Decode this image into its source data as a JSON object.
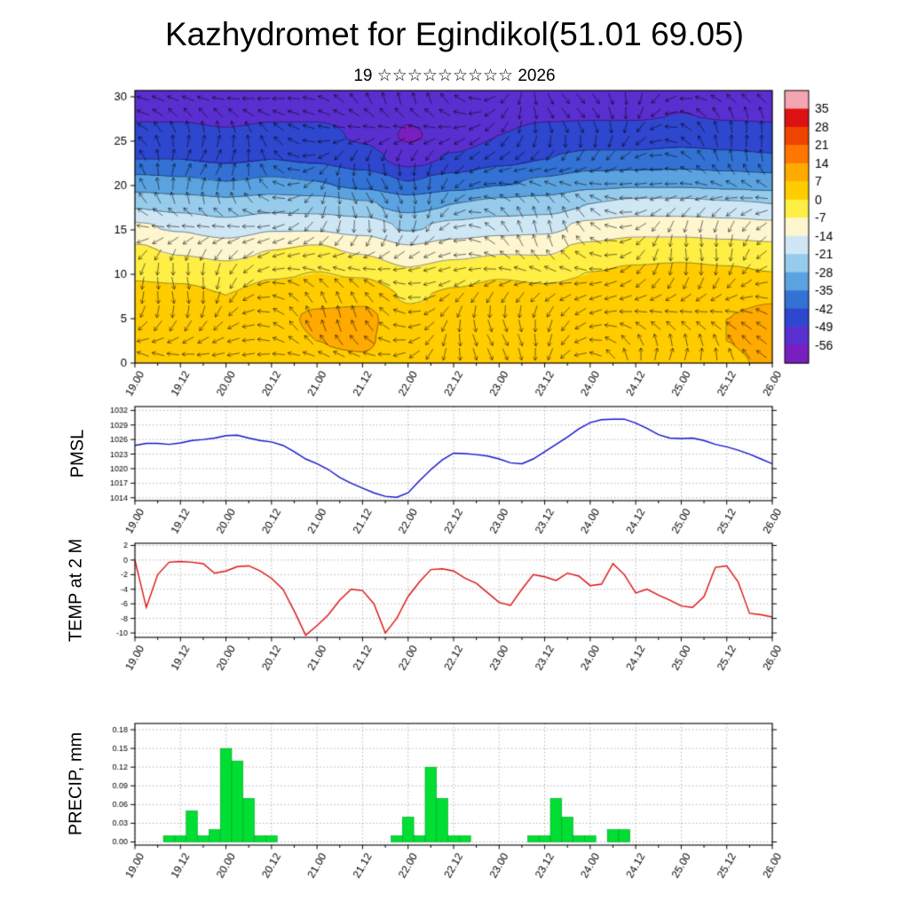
{
  "header": {
    "title": "Kazhydromet for Egindikol(51.01 69.05)",
    "subtitle": "19 ☆☆☆☆☆☆☆☆☆ 2026"
  },
  "axes": {
    "x_labels": [
      "19.00",
      "19.12",
      "20.00",
      "20.12",
      "21.00",
      "21.12",
      "22.00",
      "22.12",
      "23.00",
      "23.12",
      "24.00",
      "24.12",
      "25.00",
      "25.12",
      "26.00"
    ]
  },
  "chart_data": [
    {
      "type": "heatmap",
      "name": "temperature-wind-cross-section",
      "ylabel": "",
      "y_ticks": [
        "0",
        "5",
        "10",
        "15",
        "20",
        "25",
        "30"
      ],
      "ylim": [
        0,
        30.7
      ],
      "overlay": "wind-barbs-and-contours",
      "colorbar": {
        "labels": [
          "35",
          "28",
          "21",
          "14",
          "7",
          "0",
          "-7",
          "-14",
          "-21",
          "-28",
          "-35",
          "-42",
          "-49",
          "-56"
        ],
        "colors": [
          "#f4a5b2",
          "#dd1111",
          "#ee4400",
          "#ff7700",
          "#ffaa00",
          "#ffcc00",
          "#ffee44",
          "#fdf6cf",
          "#cfe7f5",
          "#97cbec",
          "#5ba3e0",
          "#3372d4",
          "#2f46cf",
          "#5a2fd0",
          "#7a1fbf"
        ]
      },
      "grid": {
        "heights": [
          30,
          27.5,
          25,
          22.5,
          20,
          17.5,
          15,
          12.5,
          10,
          7.5,
          5,
          2.5,
          0
        ],
        "values": [
          [
            -52,
            -52,
            -53,
            -52,
            -51,
            -52,
            -54,
            -53,
            -52,
            -51,
            -52,
            -52,
            -51,
            -52,
            -52
          ],
          [
            -50,
            -50,
            -51,
            -50,
            -50,
            -51,
            -55,
            -53,
            -51,
            -50,
            -50,
            -50,
            -49,
            -50,
            -50
          ],
          [
            -47,
            -47,
            -48,
            -47,
            -47,
            -50,
            -57,
            -53,
            -49,
            -47,
            -46,
            -46,
            -45,
            -46,
            -47
          ],
          [
            -42,
            -42,
            -43,
            -42,
            -43,
            -46,
            -52,
            -48,
            -44,
            -42,
            -40,
            -40,
            -39,
            -40,
            -41
          ],
          [
            -33,
            -34,
            -35,
            -34,
            -35,
            -38,
            -42,
            -39,
            -36,
            -34,
            -31,
            -30,
            -30,
            -31,
            -32
          ],
          [
            -22,
            -24,
            -26,
            -24,
            -25,
            -27,
            -31,
            -28,
            -26,
            -25,
            -21,
            -19,
            -19,
            -20,
            -21
          ],
          [
            -13,
            -15,
            -18,
            -15,
            -15,
            -17,
            -22,
            -19,
            -17,
            -16,
            -12,
            -10,
            -10,
            -11,
            -12
          ],
          [
            -6,
            -8,
            -10,
            -7,
            -6,
            -8,
            -13,
            -10,
            -8,
            -8,
            -5,
            -3,
            -3,
            -4,
            -5
          ],
          [
            -1,
            -2,
            -4,
            -1,
            0,
            -1,
            -6,
            -3,
            -1,
            -2,
            0,
            1,
            2,
            1,
            0
          ],
          [
            2,
            2,
            0,
            3,
            5,
            5,
            -1,
            1,
            3,
            2,
            3,
            4,
            5,
            5,
            6
          ],
          [
            4,
            3,
            2,
            5,
            8,
            9,
            2,
            3,
            5,
            4,
            5,
            5,
            6,
            7,
            9
          ],
          [
            4,
            4,
            3,
            5,
            7,
            8,
            3,
            4,
            5,
            4,
            5,
            5,
            6,
            7,
            9
          ],
          [
            3,
            3,
            3,
            4,
            6,
            6,
            3,
            3,
            4,
            3,
            4,
            4,
            5,
            6,
            8
          ]
        ]
      }
    },
    {
      "type": "line",
      "ylabel": "PMSL",
      "color": "#1414cc",
      "x_start_hour": 0,
      "x_step_hours": 3,
      "y_ticks": [
        "1014",
        "1017",
        "1020",
        "1023",
        "1026",
        "1029",
        "1032"
      ],
      "ylim": [
        1013.4,
        1032.8
      ],
      "values": [
        1024.8,
        1025.2,
        1025.2,
        1025.0,
        1025.3,
        1025.8,
        1026.0,
        1026.3,
        1026.8,
        1026.9,
        1026.3,
        1025.8,
        1025.5,
        1024.8,
        1023.5,
        1022.0,
        1021.0,
        1019.8,
        1018.2,
        1017.0,
        1016.0,
        1015.0,
        1014.3,
        1014.1,
        1015.0,
        1017.5,
        1019.8,
        1021.8,
        1023.2,
        1023.1,
        1022.9,
        1022.6,
        1022.0,
        1021.2,
        1021.0,
        1022.0,
        1023.5,
        1025.0,
        1026.5,
        1028.2,
        1029.5,
        1030.1,
        1030.2,
        1030.2,
        1029.4,
        1028.3,
        1027.0,
        1026.3,
        1026.2,
        1026.3,
        1025.8,
        1025.0,
        1024.5,
        1023.8,
        1023.0,
        1022.0,
        1021.0
      ]
    },
    {
      "type": "line",
      "ylabel": "TEMP at 2 M",
      "color": "#dd1111",
      "x_start_hour": 0,
      "x_step_hours": 3,
      "y_ticks": [
        "2",
        "0",
        "-2",
        "-4",
        "-6",
        "-8",
        "-10"
      ],
      "ylim": [
        -10.6,
        2.3
      ],
      "values": [
        0.0,
        -6.5,
        -2.0,
        -0.3,
        -0.2,
        -0.3,
        -0.5,
        -1.8,
        -1.5,
        -0.9,
        -0.8,
        -1.5,
        -2.5,
        -4.0,
        -7.0,
        -10.3,
        -9.0,
        -7.5,
        -5.5,
        -4.0,
        -4.2,
        -6.0,
        -10.0,
        -8.0,
        -5.0,
        -3.0,
        -1.3,
        -1.2,
        -1.5,
        -2.5,
        -3.2,
        -4.5,
        -5.8,
        -6.2,
        -4.0,
        -2.0,
        -2.3,
        -2.8,
        -1.8,
        -2.2,
        -3.5,
        -3.3,
        -0.5,
        -2.0,
        -4.5,
        -4.0,
        -4.8,
        -5.5,
        -6.3,
        -6.5,
        -5.0,
        -1.0,
        -0.8,
        -3.0,
        -7.3,
        -7.5,
        -7.8
      ]
    },
    {
      "type": "bar",
      "ylabel": "PRECIP, mm",
      "color": "#00dd33",
      "bar_edge_color": "#009922",
      "x_start_hour": 0,
      "x_step_hours": 3,
      "y_ticks": [
        "0.00",
        "0.03",
        "0.06",
        "0.09",
        "0.12",
        "0.15",
        "0.18"
      ],
      "ylim": [
        -0.005,
        0.19
      ],
      "values": [
        0,
        0,
        0,
        0.01,
        0.01,
        0.05,
        0.01,
        0.02,
        0.15,
        0.13,
        0.07,
        0.01,
        0.01,
        0,
        0,
        0,
        0,
        0,
        0,
        0,
        0,
        0,
        0,
        0.01,
        0.04,
        0.01,
        0.12,
        0.07,
        0.01,
        0.01,
        0,
        0,
        0,
        0,
        0,
        0.01,
        0.01,
        0.07,
        0.04,
        0.01,
        0.01,
        0,
        0.02,
        0.02,
        0,
        0,
        0,
        0,
        0,
        0,
        0,
        0,
        0,
        0,
        0,
        0,
        0
      ]
    }
  ]
}
